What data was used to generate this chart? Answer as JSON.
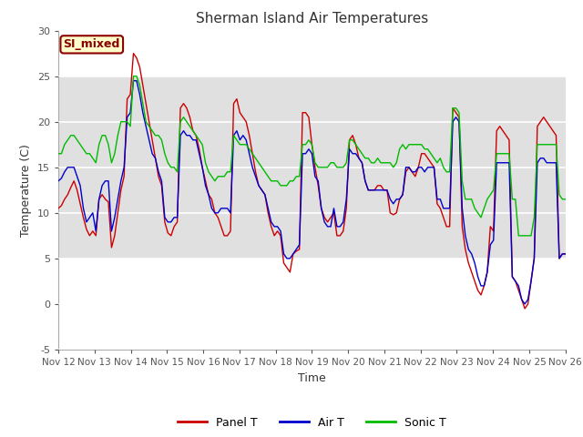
{
  "title": "Sherman Island Air Temperatures",
  "xlabel": "Time",
  "ylabel": "Temperature (C)",
  "ylim": [
    -5,
    30
  ],
  "xlim": [
    0,
    14
  ],
  "xtick_labels": [
    "Nov 12",
    "Nov 13",
    "Nov 14",
    "Nov 15",
    "Nov 16",
    "Nov 17",
    "Nov 18",
    "Nov 19",
    "Nov 20",
    "Nov 21",
    "Nov 22",
    "Nov 23",
    "Nov 24",
    "Nov 25",
    "Nov 26"
  ],
  "xtick_positions": [
    0,
    1,
    2,
    3,
    4,
    5,
    6,
    7,
    8,
    9,
    10,
    11,
    12,
    13,
    14
  ],
  "ytick_labels": [
    "-5",
    "0",
    "5",
    "10",
    "15",
    "20",
    "25",
    "30"
  ],
  "ytick_positions": [
    -5,
    0,
    5,
    10,
    15,
    20,
    25,
    30
  ],
  "band_color": "#e0e0e0",
  "band_y1": 5,
  "band_y2": 25,
  "outer_bg": "#ffffff",
  "plot_bg": "#ffffff",
  "legend_label": "SI_mixed",
  "legend_box_color": "#ffffcc",
  "legend_box_edge_color": "#8b0000",
  "legend_text_color": "#8b0000",
  "line_panel_color": "#cc0000",
  "line_air_color": "#0000cc",
  "line_sonic_color": "#00bb00",
  "grid_color": "#d8d8d8",
  "panel_T": [
    10.5,
    10.8,
    11.5,
    12.0,
    12.8,
    13.5,
    12.5,
    11.0,
    9.5,
    8.2,
    7.5,
    8.0,
    7.5,
    11.5,
    12.0,
    11.5,
    11.2,
    6.2,
    7.5,
    10.0,
    12.5,
    14.0,
    22.5,
    23.0,
    27.5,
    27.0,
    26.0,
    24.0,
    22.0,
    20.0,
    18.0,
    16.0,
    14.0,
    13.0,
    9.0,
    7.8,
    7.5,
    8.5,
    9.0,
    21.5,
    22.0,
    21.5,
    20.5,
    19.0,
    18.5,
    17.0,
    15.0,
    13.5,
    12.0,
    11.5,
    10.0,
    9.5,
    8.5,
    7.5,
    7.5,
    8.0,
    22.0,
    22.5,
    21.0,
    20.5,
    20.0,
    18.5,
    16.5,
    14.5,
    13.0,
    12.5,
    12.0,
    10.0,
    8.5,
    7.5,
    8.0,
    7.5,
    4.5,
    4.0,
    3.5,
    5.5,
    5.8,
    6.0,
    21.0,
    21.0,
    20.5,
    17.5,
    15.0,
    13.0,
    10.5,
    9.5,
    9.0,
    9.5,
    10.0,
    7.5,
    7.5,
    8.0,
    10.5,
    18.0,
    18.5,
    17.5,
    16.0,
    15.5,
    13.5,
    12.5,
    12.5,
    12.5,
    13.0,
    13.0,
    12.5,
    12.5,
    10.0,
    9.8,
    10.0,
    11.5,
    12.0,
    14.5,
    15.0,
    14.5,
    14.0,
    15.0,
    16.5,
    16.5,
    16.0,
    15.5,
    15.0,
    11.0,
    10.5,
    9.5,
    8.5,
    8.5,
    21.5,
    21.0,
    20.5,
    8.5,
    6.0,
    4.5,
    3.5,
    2.5,
    1.5,
    1.0,
    2.0,
    3.5,
    8.5,
    8.0,
    19.0,
    19.5,
    19.0,
    18.5,
    18.0,
    3.0,
    2.5,
    1.5,
    0.5,
    -0.5,
    0.0,
    2.5,
    5.0,
    19.5,
    20.0,
    20.5,
    20.0,
    19.5,
    19.0,
    18.5,
    5.0,
    5.5,
    5.5
  ],
  "air_T": [
    13.5,
    13.8,
    14.5,
    15.0,
    15.0,
    15.0,
    14.0,
    13.0,
    10.5,
    9.0,
    9.5,
    10.0,
    8.0,
    11.5,
    13.0,
    13.5,
    13.5,
    8.0,
    9.5,
    11.5,
    13.5,
    15.0,
    20.5,
    21.0,
    24.5,
    24.5,
    23.0,
    21.0,
    19.5,
    18.0,
    16.5,
    16.0,
    14.5,
    13.5,
    9.5,
    9.0,
    9.0,
    9.5,
    9.5,
    18.5,
    19.0,
    18.5,
    18.5,
    18.0,
    18.0,
    16.5,
    15.0,
    13.0,
    12.0,
    10.5,
    10.0,
    10.0,
    10.5,
    10.5,
    10.5,
    10.0,
    18.5,
    19.0,
    18.0,
    18.5,
    18.0,
    16.5,
    15.0,
    14.0,
    13.0,
    12.5,
    12.0,
    10.5,
    9.0,
    8.5,
    8.5,
    8.0,
    5.5,
    5.0,
    5.0,
    5.5,
    6.0,
    6.5,
    16.5,
    16.5,
    17.0,
    16.5,
    14.0,
    13.5,
    10.5,
    9.0,
    8.5,
    8.5,
    10.5,
    8.5,
    8.5,
    9.0,
    11.5,
    17.0,
    16.5,
    16.5,
    16.0,
    15.5,
    13.5,
    12.5,
    12.5,
    12.5,
    12.5,
    12.5,
    12.5,
    12.5,
    11.5,
    11.0,
    11.5,
    11.5,
    12.0,
    15.0,
    15.0,
    14.5,
    14.5,
    15.0,
    15.0,
    14.5,
    15.0,
    15.0,
    15.0,
    11.5,
    11.5,
    10.5,
    10.5,
    10.5,
    20.0,
    20.5,
    20.0,
    10.5,
    7.5,
    6.0,
    5.5,
    4.5,
    3.0,
    2.0,
    2.0,
    3.5,
    6.5,
    7.0,
    15.5,
    15.5,
    15.5,
    15.5,
    15.5,
    3.0,
    2.5,
    2.0,
    0.5,
    0.0,
    0.5,
    2.5,
    5.0,
    15.5,
    16.0,
    16.0,
    15.5,
    15.5,
    15.5,
    15.5,
    5.0,
    5.5,
    5.5
  ],
  "sonic_T": [
    16.5,
    16.5,
    17.5,
    18.0,
    18.5,
    18.5,
    18.0,
    17.5,
    17.0,
    16.5,
    16.5,
    16.0,
    15.5,
    17.5,
    18.5,
    18.5,
    17.5,
    15.5,
    16.5,
    18.5,
    20.0,
    20.0,
    20.0,
    19.5,
    25.0,
    25.0,
    24.0,
    22.0,
    20.0,
    19.5,
    19.0,
    18.5,
    18.5,
    18.0,
    16.5,
    15.5,
    15.0,
    15.0,
    14.5,
    20.0,
    20.5,
    20.0,
    19.5,
    19.0,
    18.5,
    18.0,
    17.5,
    15.5,
    14.5,
    14.0,
    13.5,
    14.0,
    14.0,
    14.0,
    14.5,
    14.5,
    18.5,
    18.0,
    17.5,
    17.5,
    17.5,
    17.0,
    16.5,
    16.0,
    15.5,
    15.0,
    14.5,
    14.0,
    13.5,
    13.5,
    13.5,
    13.0,
    13.0,
    13.0,
    13.5,
    13.5,
    14.0,
    14.0,
    17.5,
    17.5,
    18.0,
    17.5,
    15.5,
    15.0,
    15.0,
    15.0,
    15.0,
    15.5,
    15.5,
    15.0,
    15.0,
    15.0,
    15.5,
    18.0,
    18.0,
    17.5,
    17.0,
    16.5,
    16.0,
    16.0,
    15.5,
    15.5,
    16.0,
    15.5,
    15.5,
    15.5,
    15.5,
    15.0,
    15.5,
    17.0,
    17.5,
    17.0,
    17.5,
    17.5,
    17.5,
    17.5,
    17.5,
    17.0,
    17.0,
    16.5,
    16.0,
    15.5,
    16.0,
    15.0,
    14.5,
    14.5,
    21.5,
    21.5,
    21.0,
    13.5,
    11.5,
    11.5,
    11.5,
    10.5,
    10.0,
    9.5,
    10.5,
    11.5,
    12.0,
    12.5,
    16.5,
    16.5,
    16.5,
    16.5,
    16.5,
    11.5,
    11.5,
    7.5,
    7.5,
    7.5,
    7.5,
    7.5,
    9.5,
    17.5,
    17.5,
    17.5,
    17.5,
    17.5,
    17.5,
    17.5,
    12.0,
    11.5,
    11.5
  ]
}
